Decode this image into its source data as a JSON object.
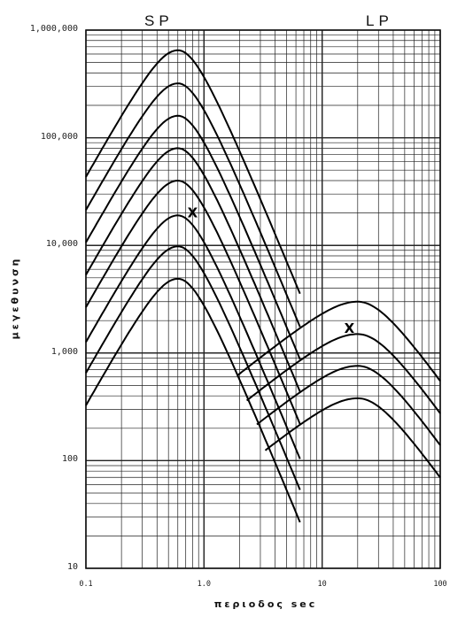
{
  "chart_data": {
    "type": "line",
    "title": "",
    "xlabel": "περιοδος sec",
    "ylabel": "μεγεθυνση",
    "x_scale": "log",
    "y_scale": "log",
    "xlim": [
      0.1,
      100
    ],
    "ylim": [
      10,
      1000000
    ],
    "grid": true,
    "x_tick_labels": [
      "0.1",
      "1.0",
      "10",
      "100"
    ],
    "y_tick_labels": [
      "10",
      "100",
      "1,000",
      "10,000",
      "100,000",
      "1,000,000"
    ],
    "band_labels": {
      "short_period": "SP",
      "long_period": "LP"
    },
    "sp_peak_period": 0.6,
    "sp_peak_values": [
      650000,
      320000,
      160000,
      80000,
      40000,
      19000,
      9800,
      4900
    ],
    "lp_peak_period": 20,
    "lp_peak_values": [
      3000,
      1500,
      760,
      380
    ],
    "operating_points": [
      {
        "x": 0.8,
        "y": 20000,
        "label": "X"
      },
      {
        "x": 17,
        "y": 1700,
        "label": "X"
      }
    ]
  }
}
